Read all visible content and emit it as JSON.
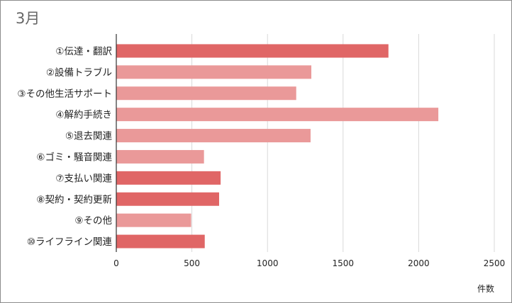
{
  "chart_data": {
    "type": "bar",
    "orientation": "horizontal",
    "title": "3月",
    "xlabel": "件数",
    "ylabel": "",
    "categories": [
      "①伝達・翻訳",
      "②設備トラブル",
      "③その他生活サポート",
      "④解約手続き",
      "⑤退去関連",
      "⑥ゴミ・騒音関連",
      "⑦支払い関連",
      "⑧契約・契約更新",
      "⑨その他",
      "⑩ライフライン関連"
    ],
    "values": [
      1800,
      1290,
      1190,
      2130,
      1285,
      580,
      690,
      680,
      495,
      585
    ],
    "bar_colors": [
      "#e06666",
      "#ea9999",
      "#ea9999",
      "#ea9999",
      "#ea9999",
      "#ea9999",
      "#e06666",
      "#e06666",
      "#ea9999",
      "#e06666"
    ],
    "xlim": [
      0,
      2500
    ],
    "xticks": [
      0,
      500,
      1000,
      1500,
      2000,
      2500
    ],
    "grid": "vertical",
    "legend": "none"
  }
}
